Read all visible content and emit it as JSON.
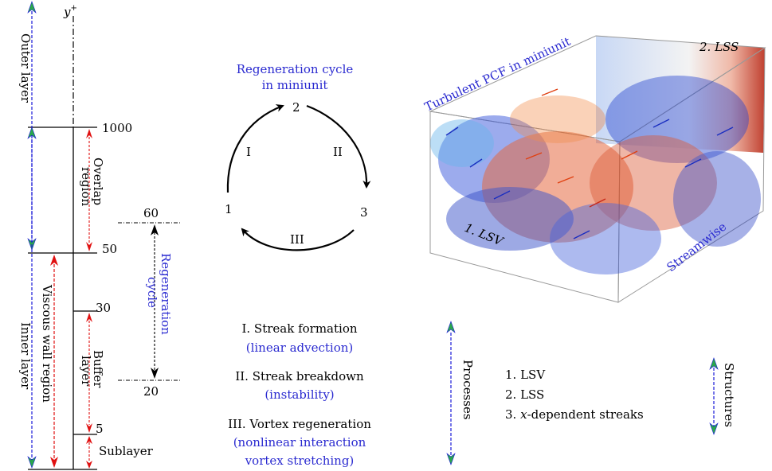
{
  "axis": {
    "label_y": "y",
    "label_sup": "+"
  },
  "ticks": {
    "t1000": "1000",
    "t50": "50",
    "t30": "30",
    "t5": "5",
    "t60": "60",
    "t20": "20"
  },
  "layers": {
    "outer": "Outer layer",
    "inner": "Inner layer",
    "viscous": "Viscous wall region",
    "overlap_l1": "Overlap",
    "overlap_l2": "region",
    "buffer_l1": "Buffer",
    "buffer_l2": "layer",
    "sublayer": "Sublayer",
    "regen_l1": "Regeneration",
    "regen_l2": "cycle"
  },
  "cycle": {
    "title_l1": "Regeneration cycle",
    "title_l2": "in miniunit",
    "n1": "1",
    "n2": "2",
    "n3": "3",
    "r1": "I",
    "r2": "II",
    "r3": "III"
  },
  "processes": {
    "label": "Processes",
    "p1": "I. Streak formation",
    "p1_note": "(linear advection)",
    "p2": "II. Streak breakdown",
    "p2_note": "(instability)",
    "p3": "III. Vortex regeneration",
    "p3_note_l1": "(nonlinear interaction",
    "p3_note_l2": "vortex stretching)"
  },
  "structures": {
    "label": "Structures",
    "s1": "1. LSV",
    "s2": "2. LSS",
    "s3_num": "3.",
    "s3_x": "x",
    "s3_rest": "-dependent streaks"
  },
  "viz": {
    "title": "Turbulent PCF in miniunit",
    "lsv": "1. LSV",
    "lss": "2. LSS",
    "streamwise": "Streamwise"
  },
  "colors": {
    "blue_text": "#2a2ad0",
    "red_arrow": "#e01010",
    "green_head": "#2aa84a",
    "dashed_blue": "#1a1ad8"
  }
}
